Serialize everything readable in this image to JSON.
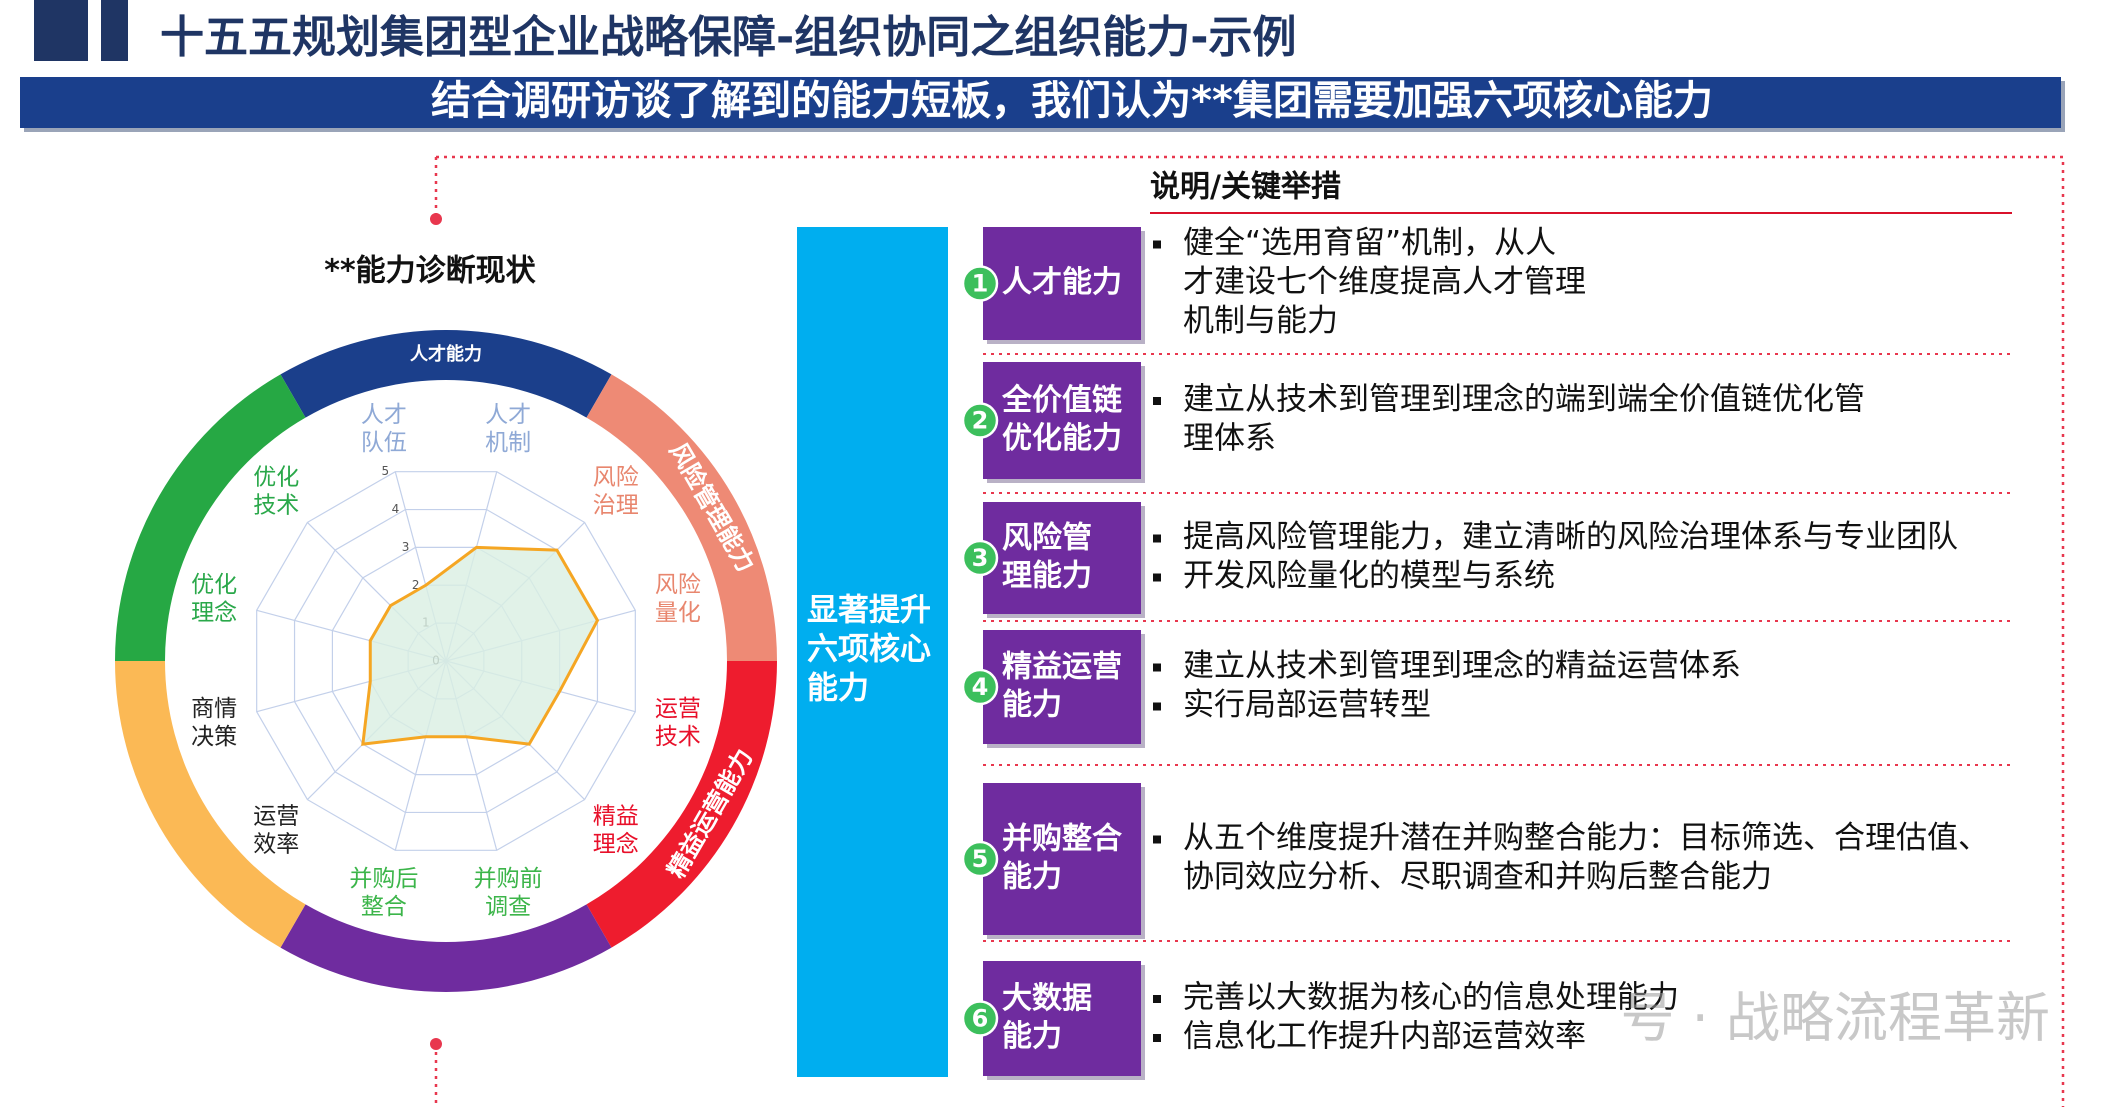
{
  "header": {
    "title": "十五五规划集团型企业战略保障-组织协同之组织能力-示例",
    "banner": "结合调研访谈了解到的能力短板，我们认为**集团需要加强六项核心能力"
  },
  "chart_data": {
    "type": "radar",
    "title": "**能力诊断现状",
    "categories": [
      "人才队伍",
      "人才机制",
      "风险治理",
      "风险量化",
      "运营技术",
      "精益理念",
      "并购前调查",
      "并购后整合",
      "运营效率",
      "商情决策",
      "优化理念",
      "优化技术"
    ],
    "values": [
      2,
      3,
      4,
      4,
      3,
      3,
      2,
      2,
      3,
      2,
      2,
      2
    ],
    "label_colors": [
      "#8fa9d6",
      "#8fa9d6",
      "#e8866e",
      "#e8866e",
      "#e8102a",
      "#e8102a",
      "#3cb54a",
      "#3cb54a",
      "#222222",
      "#222222",
      "#2aa84a",
      "#2aa84a"
    ],
    "color": "#f5a623",
    "fill": "#d9efe2",
    "rlim": [
      0,
      5
    ],
    "rticks": [
      0,
      1,
      2,
      3,
      4,
      5
    ],
    "grid": true,
    "ring": [
      {
        "label": "人才能力",
        "color": "#1b3f8b"
      },
      {
        "label": "风险管理能力",
        "color": "#ee8a75"
      },
      {
        "label": "精益运营能力",
        "color": "#ee1c2e"
      },
      {
        "color": "#6f2c9f"
      },
      {
        "color": "#fbb955"
      },
      {
        "color": "#26a844"
      }
    ]
  },
  "center_bar": {
    "lines": [
      "显著提升",
      "六项核心",
      "能力"
    ]
  },
  "panel": {
    "heading": "说明/关键举措",
    "rows": [
      {
        "number": 1,
        "title": [
          "人才能力"
        ],
        "bullets": [
          [
            "健全“选用育留”机制，从人",
            "才建设七个维度提高人才管理",
            "机制与能力"
          ]
        ]
      },
      {
        "number": 2,
        "title": [
          "全价值链",
          "优化能力"
        ],
        "bullets": [
          [
            "建立从技术到管理到理念的端到端全价值链优化管",
            "理体系"
          ]
        ]
      },
      {
        "number": 3,
        "title": [
          "风险管",
          "理能力"
        ],
        "bullets": [
          [
            "提高风险管理能力，建立清晰的风险治理体系与专业团队"
          ],
          [
            "开发风险量化的模型与系统"
          ]
        ]
      },
      {
        "number": 4,
        "title": [
          "精益运营",
          "能力"
        ],
        "bullets": [
          [
            "建立从技术到管理到理念的精益运营体系"
          ],
          [
            "实行局部运营转型"
          ]
        ]
      },
      {
        "number": 5,
        "title": [
          "并购整合",
          "能力"
        ],
        "bullets": [
          [
            "从五个维度提升潜在并购整合能力：目标筛选、合理估值、",
            "协同效应分析、尽职调查和并购后整合能力"
          ]
        ]
      },
      {
        "number": 6,
        "title": [
          "大数据",
          "能力"
        ],
        "bullets": [
          [
            "完善以大数据为核心的信息处理能力"
          ],
          [
            "信息化工作提升内部运营效率"
          ]
        ]
      }
    ]
  },
  "watermark": "号 · 战略流程革新"
}
